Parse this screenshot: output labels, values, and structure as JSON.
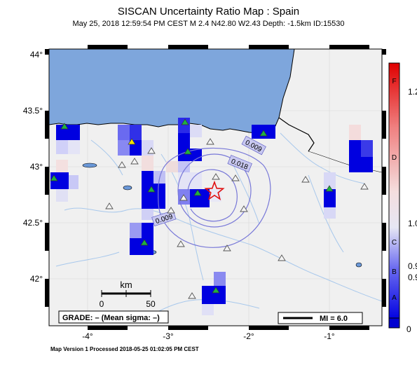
{
  "title": "SISCAN Uncertainty Ratio Map : Spain",
  "subtitle": "May 25, 2018 12:59:54 PM CEST   M 2.4   N42.80 W2.43   Depth: -1.5km   ID:15530",
  "footer": "Map Version 1 Processed 2018-05-25 01:02:05 PM CEST",
  "axes": {
    "lat_labels": [
      "44°",
      "43.5°",
      "43°",
      "42.5°",
      "42°"
    ],
    "lon_labels": [
      "-4°",
      "-3°",
      "-2°",
      "-1°"
    ]
  },
  "scale_bar": {
    "unit": "km",
    "ticks": [
      "0",
      "50"
    ]
  },
  "grade_box": "GRADE: – (Mean sigma: –)",
  "mi_legend": "MI = 6.0",
  "contours": {
    "outer": "0.009",
    "middle": "0.018",
    "inner": "0.009"
  },
  "colorbar": {
    "letters": [
      "F",
      "D",
      "C",
      "B",
      "A"
    ],
    "values": [
      "1.2",
      "1.0",
      "0.9",
      "0.9",
      "0"
    ]
  },
  "colors": {
    "sea": "#7ea6dc",
    "land": "#f0f0f0",
    "cell_high": "#0000e0",
    "epicenter": "#e01010"
  }
}
